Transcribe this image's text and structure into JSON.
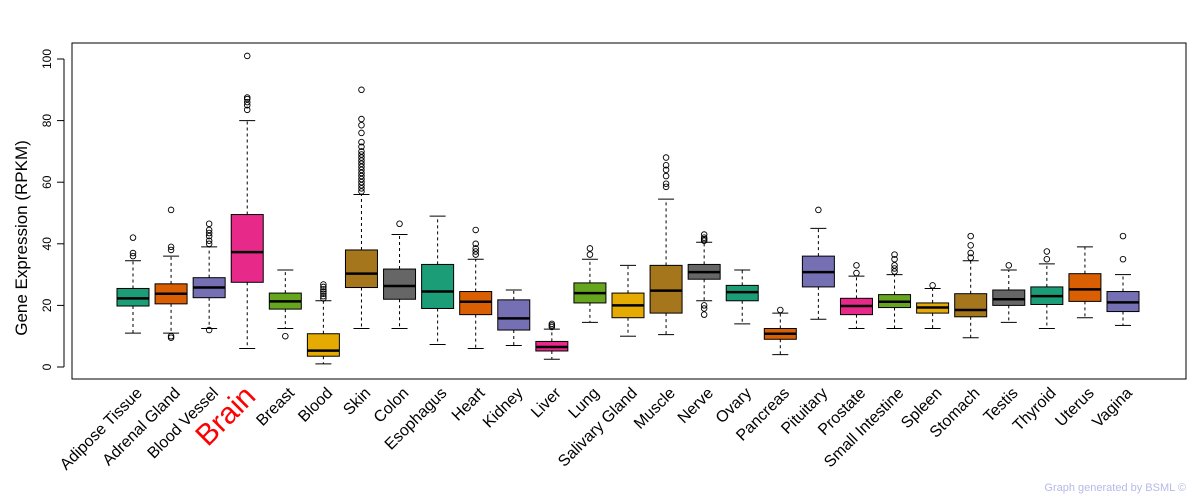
{
  "chart_data": {
    "type": "boxplot",
    "title": "",
    "xlabel": "",
    "ylabel": "Gene Expression (RPKM)",
    "ylim": [
      -2,
      103
    ],
    "yticks": [
      0,
      20,
      40,
      60,
      80,
      100
    ],
    "highlight": "Brain",
    "highlight_color": "#ff0000",
    "series": [
      {
        "name": "Adipose Tissue",
        "color": "#1b9e77",
        "whislo": 11,
        "q1": 19.8,
        "med": 22.3,
        "q3": 25.5,
        "whishi": 34.5,
        "fliers": [
          36,
          37,
          42
        ]
      },
      {
        "name": "Adrenal Gland",
        "color": "#d95f02",
        "whislo": 11,
        "q1": 20.5,
        "med": 23.8,
        "q3": 27,
        "whishi": 36,
        "fliers": [
          9.5,
          10,
          38,
          39,
          51
        ]
      },
      {
        "name": "Blood Vessel",
        "color": "#7570b3",
        "whislo": 12.5,
        "q1": 22.5,
        "med": 25.8,
        "q3": 29,
        "whishi": 39,
        "fliers": [
          12,
          40,
          41,
          42.5,
          43.5,
          44.5,
          46.5
        ]
      },
      {
        "name": "Brain",
        "color": "#e7298a",
        "whislo": 6,
        "q1": 27.5,
        "med": 37.3,
        "q3": 49.5,
        "whishi": 80,
        "fliers": [
          83.5,
          85,
          86,
          87,
          87.5,
          101
        ]
      },
      {
        "name": "Breast",
        "color": "#66a61e",
        "whislo": 12.5,
        "q1": 18.8,
        "med": 21.3,
        "q3": 24,
        "whishi": 31.5,
        "fliers": [
          10
        ]
      },
      {
        "name": "Blood",
        "color": "#e6ab02",
        "whislo": 1,
        "q1": 3.5,
        "med": 5.3,
        "q3": 10.8,
        "whishi": 21.5,
        "fliers": [
          22.3,
          23,
          23.8,
          24.5,
          25.2,
          26,
          26.8
        ]
      },
      {
        "name": "Skin",
        "color": "#a6761d",
        "whislo": 12.5,
        "q1": 25.8,
        "med": 30.3,
        "q3": 38,
        "whishi": 56,
        "fliers": [
          57,
          58,
          59,
          60,
          61,
          62,
          63,
          64,
          65,
          66,
          67,
          68,
          69,
          70,
          71.5,
          73,
          76,
          78.5,
          80.5,
          90
        ]
      },
      {
        "name": "Colon",
        "color": "#666666",
        "whislo": 12.5,
        "q1": 22,
        "med": 26.3,
        "q3": 31.8,
        "whishi": 43,
        "fliers": [
          46.5
        ]
      },
      {
        "name": "Esophagus",
        "color": "#1b9e77",
        "whislo": 7.3,
        "q1": 19,
        "med": 24.5,
        "q3": 33.3,
        "whishi": 49,
        "fliers": []
      },
      {
        "name": "Heart",
        "color": "#d95f02",
        "whislo": 6,
        "q1": 17,
        "med": 21.2,
        "q3": 24.5,
        "whishi": 35,
        "fliers": [
          36.5,
          37.5,
          38.5,
          40,
          44.5
        ]
      },
      {
        "name": "Kidney",
        "color": "#7570b3",
        "whislo": 7,
        "q1": 12,
        "med": 15.8,
        "q3": 21.8,
        "whishi": 25,
        "fliers": []
      },
      {
        "name": "Liver",
        "color": "#e7298a",
        "whislo": 2.5,
        "q1": 5.2,
        "med": 6.5,
        "q3": 8.3,
        "whishi": 12.3,
        "fliers": [
          13,
          13.5,
          14
        ]
      },
      {
        "name": "Lung",
        "color": "#66a61e",
        "whislo": 14.5,
        "q1": 20.8,
        "med": 24,
        "q3": 27.3,
        "whishi": 35,
        "fliers": [
          36.5,
          38.5
        ]
      },
      {
        "name": "Salivary Gland",
        "color": "#e6ab02",
        "whislo": 10,
        "q1": 16,
        "med": 20,
        "q3": 24,
        "whishi": 33,
        "fliers": []
      },
      {
        "name": "Muscle",
        "color": "#a6761d",
        "whislo": 10.5,
        "q1": 17.5,
        "med": 24.8,
        "q3": 33,
        "whishi": 54.5,
        "fliers": [
          58.5,
          59.5,
          62,
          64,
          65.5,
          68
        ]
      },
      {
        "name": "Nerve",
        "color": "#666666",
        "whislo": 21.5,
        "q1": 28.5,
        "med": 30.8,
        "q3": 33.3,
        "whishi": 40.5,
        "fliers": [
          17,
          19,
          20,
          41,
          41.5,
          42,
          43
        ]
      },
      {
        "name": "Ovary",
        "color": "#1b9e77",
        "whislo": 14,
        "q1": 21.5,
        "med": 24.3,
        "q3": 26.5,
        "whishi": 31.5,
        "fliers": []
      },
      {
        "name": "Pancreas",
        "color": "#d95f02",
        "whislo": 4,
        "q1": 9,
        "med": 10.8,
        "q3": 12.5,
        "whishi": 17.5,
        "fliers": [
          18.5
        ]
      },
      {
        "name": "Pituitary",
        "color": "#7570b3",
        "whislo": 15.5,
        "q1": 26,
        "med": 30.8,
        "q3": 36,
        "whishi": 45,
        "fliers": [
          51
        ]
      },
      {
        "name": "Prostate",
        "color": "#e7298a",
        "whislo": 12.5,
        "q1": 17,
        "med": 19.8,
        "q3": 22.3,
        "whishi": 29.5,
        "fliers": [
          30.5,
          33
        ]
      },
      {
        "name": "Small Intestine",
        "color": "#66a61e",
        "whislo": 12.5,
        "q1": 19.3,
        "med": 21.2,
        "q3": 23.5,
        "whishi": 30,
        "fliers": [
          31,
          32,
          33,
          35,
          36.5
        ]
      },
      {
        "name": "Spleen",
        "color": "#e6ab02",
        "whislo": 12.5,
        "q1": 17.5,
        "med": 19.3,
        "q3": 20.8,
        "whishi": 25.5,
        "fliers": [
          26.5
        ]
      },
      {
        "name": "Stomach",
        "color": "#a6761d",
        "whislo": 9.5,
        "q1": 16.3,
        "med": 18.5,
        "q3": 23.8,
        "whishi": 34.5,
        "fliers": [
          35.5,
          37,
          39.5,
          42.5
        ]
      },
      {
        "name": "Testis",
        "color": "#666666",
        "whislo": 14.5,
        "q1": 20,
        "med": 22,
        "q3": 25,
        "whishi": 31.5,
        "fliers": [
          33
        ]
      },
      {
        "name": "Thyroid",
        "color": "#1b9e77",
        "whislo": 12.5,
        "q1": 20.3,
        "med": 23,
        "q3": 26,
        "whishi": 33.5,
        "fliers": [
          35,
          37.5
        ]
      },
      {
        "name": "Uterus",
        "color": "#d95f02",
        "whislo": 16,
        "q1": 21.3,
        "med": 25.2,
        "q3": 30.3,
        "whishi": 39,
        "fliers": []
      },
      {
        "name": "Vagina",
        "color": "#7570b3",
        "whislo": 13.5,
        "q1": 18,
        "med": 21,
        "q3": 24.5,
        "whishi": 30,
        "fliers": [
          35,
          42.5
        ]
      }
    ]
  },
  "footer": "Graph generated by BSML ©"
}
